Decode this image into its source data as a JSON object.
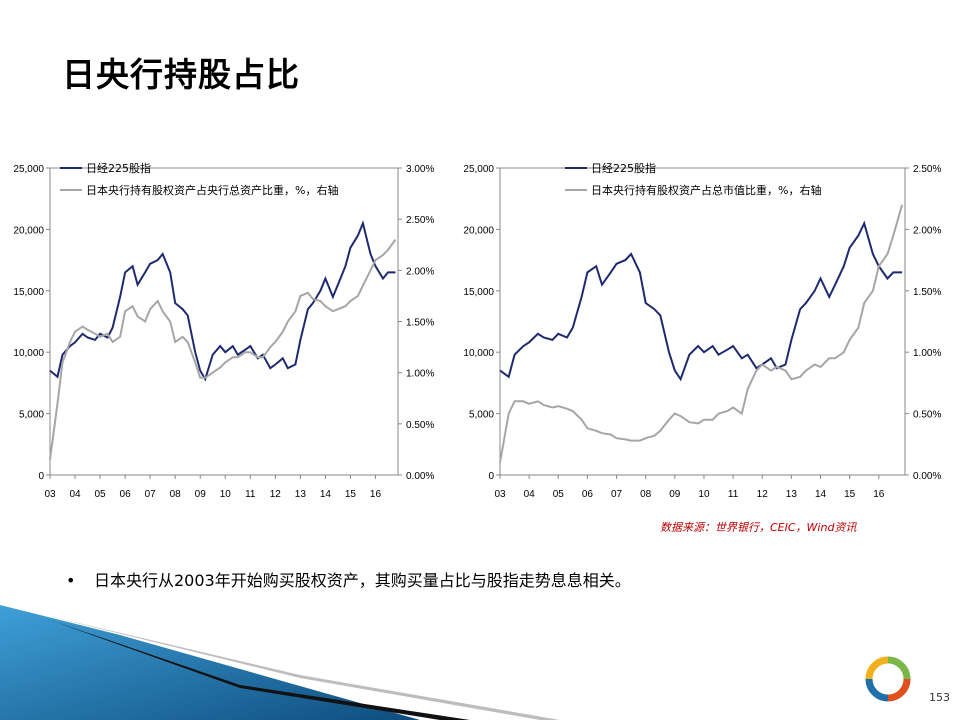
{
  "title": "日央行持股占比",
  "source": "数据来源：世界银行，CEIC，Wind资讯",
  "bullet": "日本央行从2003年开始购买股权资产，其购买量占比与股指走势息息相关。",
  "page_number": "153",
  "colors": {
    "nikkei": "#1f2a6e",
    "ratio": "#a6a6a6",
    "source_text": "#c00000",
    "deco_blue": "#1f6fa8"
  },
  "chart_data": [
    {
      "type": "line",
      "x_ticks": [
        "03",
        "04",
        "05",
        "06",
        "07",
        "08",
        "09",
        "10",
        "11",
        "12",
        "13",
        "14",
        "15",
        "16"
      ],
      "ylim": [
        0,
        25000
      ],
      "y_ticks": [
        "0",
        "5,000",
        "10,000",
        "15,000",
        "20,000",
        "25,000"
      ],
      "y2lim": [
        0,
        3.0
      ],
      "y2_ticks": [
        "0.00%",
        "0.50%",
        "1.00%",
        "1.50%",
        "2.00%",
        "2.50%",
        "3.00%"
      ],
      "legend": "top-left",
      "grid": false,
      "series": [
        {
          "name": "日经225股指",
          "axis": "left",
          "x": [
            2003.0,
            2003.3,
            2003.5,
            2003.8,
            2004.0,
            2004.3,
            2004.5,
            2004.8,
            2005.0,
            2005.3,
            2005.5,
            2005.8,
            2006.0,
            2006.3,
            2006.5,
            2006.8,
            2007.0,
            2007.3,
            2007.5,
            2007.8,
            2008.0,
            2008.3,
            2008.5,
            2008.8,
            2009.0,
            2009.2,
            2009.5,
            2009.8,
            2010.0,
            2010.3,
            2010.5,
            2010.8,
            2011.0,
            2011.3,
            2011.5,
            2011.8,
            2012.0,
            2012.3,
            2012.5,
            2012.8,
            2013.0,
            2013.3,
            2013.5,
            2013.8,
            2014.0,
            2014.3,
            2014.5,
            2014.8,
            2015.0,
            2015.3,
            2015.5,
            2015.8,
            2016.0,
            2016.3,
            2016.5,
            2016.8
          ],
          "values": [
            8500,
            8000,
            9800,
            10500,
            10800,
            11500,
            11200,
            11000,
            11500,
            11200,
            12000,
            14500,
            16500,
            17000,
            15500,
            16500,
            17200,
            17500,
            18000,
            16500,
            14000,
            13500,
            13000,
            10000,
            8500,
            7800,
            9800,
            10500,
            10000,
            10500,
            9800,
            10200,
            10500,
            9500,
            9800,
            8700,
            9000,
            9500,
            8700,
            9000,
            11000,
            13500,
            14000,
            15000,
            16000,
            14500,
            15500,
            17000,
            18500,
            19500,
            20500,
            18000,
            17000,
            16000,
            16500,
            16500
          ]
        },
        {
          "name": "日本央行持有股权资产占央行总资产比重，%，右轴",
          "axis": "right",
          "x": [
            2003.0,
            2003.3,
            2003.5,
            2003.8,
            2004.0,
            2004.3,
            2004.5,
            2004.8,
            2005.0,
            2005.3,
            2005.5,
            2005.8,
            2006.0,
            2006.3,
            2006.5,
            2006.8,
            2007.0,
            2007.3,
            2007.5,
            2007.8,
            2008.0,
            2008.3,
            2008.5,
            2008.8,
            2009.0,
            2009.2,
            2009.5,
            2009.8,
            2010.0,
            2010.3,
            2010.5,
            2010.8,
            2011.0,
            2011.3,
            2011.5,
            2011.8,
            2012.0,
            2012.3,
            2012.5,
            2012.8,
            2013.0,
            2013.3,
            2013.5,
            2013.8,
            2014.0,
            2014.3,
            2014.5,
            2014.8,
            2015.0,
            2015.3,
            2015.5,
            2015.8,
            2016.0,
            2016.3,
            2016.5,
            2016.8
          ],
          "values": [
            0.15,
            0.7,
            1.1,
            1.3,
            1.4,
            1.45,
            1.42,
            1.38,
            1.35,
            1.38,
            1.3,
            1.35,
            1.6,
            1.65,
            1.55,
            1.5,
            1.62,
            1.7,
            1.6,
            1.5,
            1.3,
            1.35,
            1.3,
            1.1,
            0.95,
            0.95,
            1.0,
            1.05,
            1.1,
            1.15,
            1.15,
            1.2,
            1.2,
            1.15,
            1.15,
            1.25,
            1.3,
            1.4,
            1.5,
            1.6,
            1.75,
            1.78,
            1.72,
            1.7,
            1.65,
            1.6,
            1.62,
            1.65,
            1.7,
            1.75,
            1.85,
            2.0,
            2.1,
            2.15,
            2.2,
            2.3
          ]
        }
      ]
    },
    {
      "type": "line",
      "x_ticks": [
        "03",
        "04",
        "05",
        "06",
        "07",
        "08",
        "09",
        "10",
        "11",
        "12",
        "13",
        "14",
        "15",
        "16"
      ],
      "ylim": [
        0,
        25000
      ],
      "y_ticks": [
        "0",
        "5,000",
        "10,000",
        "15,000",
        "20,000",
        "25,000"
      ],
      "y2lim": [
        0,
        2.5
      ],
      "y2_ticks": [
        "0.00%",
        "0.50%",
        "1.00%",
        "1.50%",
        "2.00%",
        "2.50%"
      ],
      "legend": "top-center",
      "grid": false,
      "series": [
        {
          "name": "日经225股指",
          "axis": "left",
          "x": [
            2003.0,
            2003.3,
            2003.5,
            2003.8,
            2004.0,
            2004.3,
            2004.5,
            2004.8,
            2005.0,
            2005.3,
            2005.5,
            2005.8,
            2006.0,
            2006.3,
            2006.5,
            2006.8,
            2007.0,
            2007.3,
            2007.5,
            2007.8,
            2008.0,
            2008.3,
            2008.5,
            2008.8,
            2009.0,
            2009.2,
            2009.5,
            2009.8,
            2010.0,
            2010.3,
            2010.5,
            2010.8,
            2011.0,
            2011.3,
            2011.5,
            2011.8,
            2012.0,
            2012.3,
            2012.5,
            2012.8,
            2013.0,
            2013.3,
            2013.5,
            2013.8,
            2014.0,
            2014.3,
            2014.5,
            2014.8,
            2015.0,
            2015.3,
            2015.5,
            2015.8,
            2016.0,
            2016.3,
            2016.5,
            2016.8
          ],
          "values": [
            8500,
            8000,
            9800,
            10500,
            10800,
            11500,
            11200,
            11000,
            11500,
            11200,
            12000,
            14500,
            16500,
            17000,
            15500,
            16500,
            17200,
            17500,
            18000,
            16500,
            14000,
            13500,
            13000,
            10000,
            8500,
            7800,
            9800,
            10500,
            10000,
            10500,
            9800,
            10200,
            10500,
            9500,
            9800,
            8700,
            9000,
            9500,
            8700,
            9000,
            11000,
            13500,
            14000,
            15000,
            16000,
            14500,
            15500,
            17000,
            18500,
            19500,
            20500,
            18000,
            17000,
            16000,
            16500,
            16500
          ]
        },
        {
          "name": "日本央行持有股权资产占总市值比重，%，右轴",
          "axis": "right",
          "x": [
            2003.0,
            2003.3,
            2003.5,
            2003.8,
            2004.0,
            2004.3,
            2004.5,
            2004.8,
            2005.0,
            2005.3,
            2005.5,
            2005.8,
            2006.0,
            2006.3,
            2006.5,
            2006.8,
            2007.0,
            2007.3,
            2007.5,
            2007.8,
            2008.0,
            2008.3,
            2008.5,
            2008.8,
            2009.0,
            2009.2,
            2009.5,
            2009.8,
            2010.0,
            2010.3,
            2010.5,
            2010.8,
            2011.0,
            2011.3,
            2011.5,
            2011.8,
            2012.0,
            2012.3,
            2012.5,
            2012.8,
            2013.0,
            2013.3,
            2013.5,
            2013.8,
            2014.0,
            2014.3,
            2014.5,
            2014.8,
            2015.0,
            2015.3,
            2015.5,
            2015.8,
            2016.0,
            2016.3,
            2016.5,
            2016.8
          ],
          "values": [
            0.1,
            0.5,
            0.6,
            0.6,
            0.58,
            0.6,
            0.57,
            0.55,
            0.56,
            0.54,
            0.52,
            0.45,
            0.38,
            0.36,
            0.34,
            0.33,
            0.3,
            0.29,
            0.28,
            0.28,
            0.3,
            0.32,
            0.36,
            0.45,
            0.5,
            0.48,
            0.43,
            0.42,
            0.45,
            0.45,
            0.5,
            0.52,
            0.55,
            0.5,
            0.7,
            0.85,
            0.9,
            0.85,
            0.88,
            0.85,
            0.78,
            0.8,
            0.85,
            0.9,
            0.88,
            0.95,
            0.95,
            1.0,
            1.1,
            1.2,
            1.4,
            1.5,
            1.7,
            1.8,
            1.95,
            2.2
          ]
        }
      ]
    }
  ]
}
